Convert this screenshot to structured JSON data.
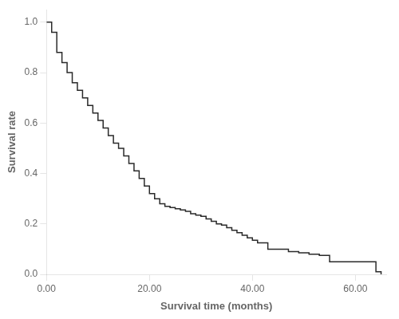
{
  "chart_data": {
    "type": "line",
    "line_style": "steps-post",
    "xlabel": "Survival time (months)",
    "ylabel": "Survival rate",
    "x": [
      0,
      1,
      2,
      3,
      4,
      5,
      6,
      7,
      8,
      9,
      10,
      11,
      12,
      13,
      14,
      15,
      16,
      17,
      18,
      19,
      20,
      21,
      22,
      23,
      24,
      25,
      26,
      27,
      28,
      29,
      30,
      31,
      32,
      33,
      34,
      35,
      36,
      37,
      38,
      39,
      40,
      41,
      43,
      45,
      47,
      49,
      51,
      53,
      55,
      57,
      59,
      62,
      64,
      65
    ],
    "values": [
      1.0,
      0.96,
      0.88,
      0.84,
      0.8,
      0.76,
      0.73,
      0.7,
      0.67,
      0.64,
      0.61,
      0.58,
      0.55,
      0.52,
      0.5,
      0.47,
      0.44,
      0.41,
      0.38,
      0.35,
      0.32,
      0.3,
      0.28,
      0.27,
      0.265,
      0.26,
      0.255,
      0.25,
      0.24,
      0.235,
      0.23,
      0.22,
      0.21,
      0.2,
      0.195,
      0.185,
      0.175,
      0.165,
      0.155,
      0.145,
      0.135,
      0.125,
      0.1,
      0.1,
      0.09,
      0.085,
      0.08,
      0.075,
      0.05,
      0.05,
      0.05,
      0.05,
      0.01,
      0.0
    ],
    "color": "#2a2a2a",
    "xlim": [
      0,
      66
    ],
    "xticks": [
      {
        "value": 0,
        "label": "0.00"
      },
      {
        "value": 20,
        "label": "20.00"
      },
      {
        "value": 40,
        "label": "40.00"
      },
      {
        "value": 60,
        "label": "60.00"
      }
    ],
    "ylim": [
      0.0,
      1.05
    ],
    "yticks": [
      {
        "value": 0,
        "label": "0.0"
      },
      0.2,
      0.4,
      0.6,
      0.8,
      {
        "value": 1,
        "label": "1.0"
      }
    ],
    "grid": false
  }
}
